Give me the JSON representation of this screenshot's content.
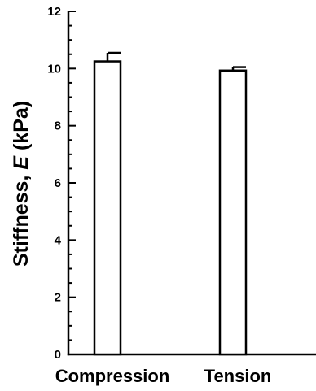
{
  "chart_data": {
    "type": "bar",
    "categories": [
      "Compression",
      "Tension"
    ],
    "values": [
      10.25,
      9.93
    ],
    "errors": [
      0.3,
      0.12
    ],
    "ylabel": {
      "prefix": "Stiffness, ",
      "symbol": "E",
      "suffix": " (kPa)"
    },
    "xlabel": "",
    "title": "",
    "ylim": [
      0,
      12
    ],
    "yticks": [
      0,
      2,
      4,
      6,
      8,
      10,
      12
    ],
    "minor_tick_step": 0.5,
    "grid": false,
    "legend": "none",
    "colors": {
      "bar_fill": "#ffffff",
      "stroke": "#000000"
    }
  }
}
